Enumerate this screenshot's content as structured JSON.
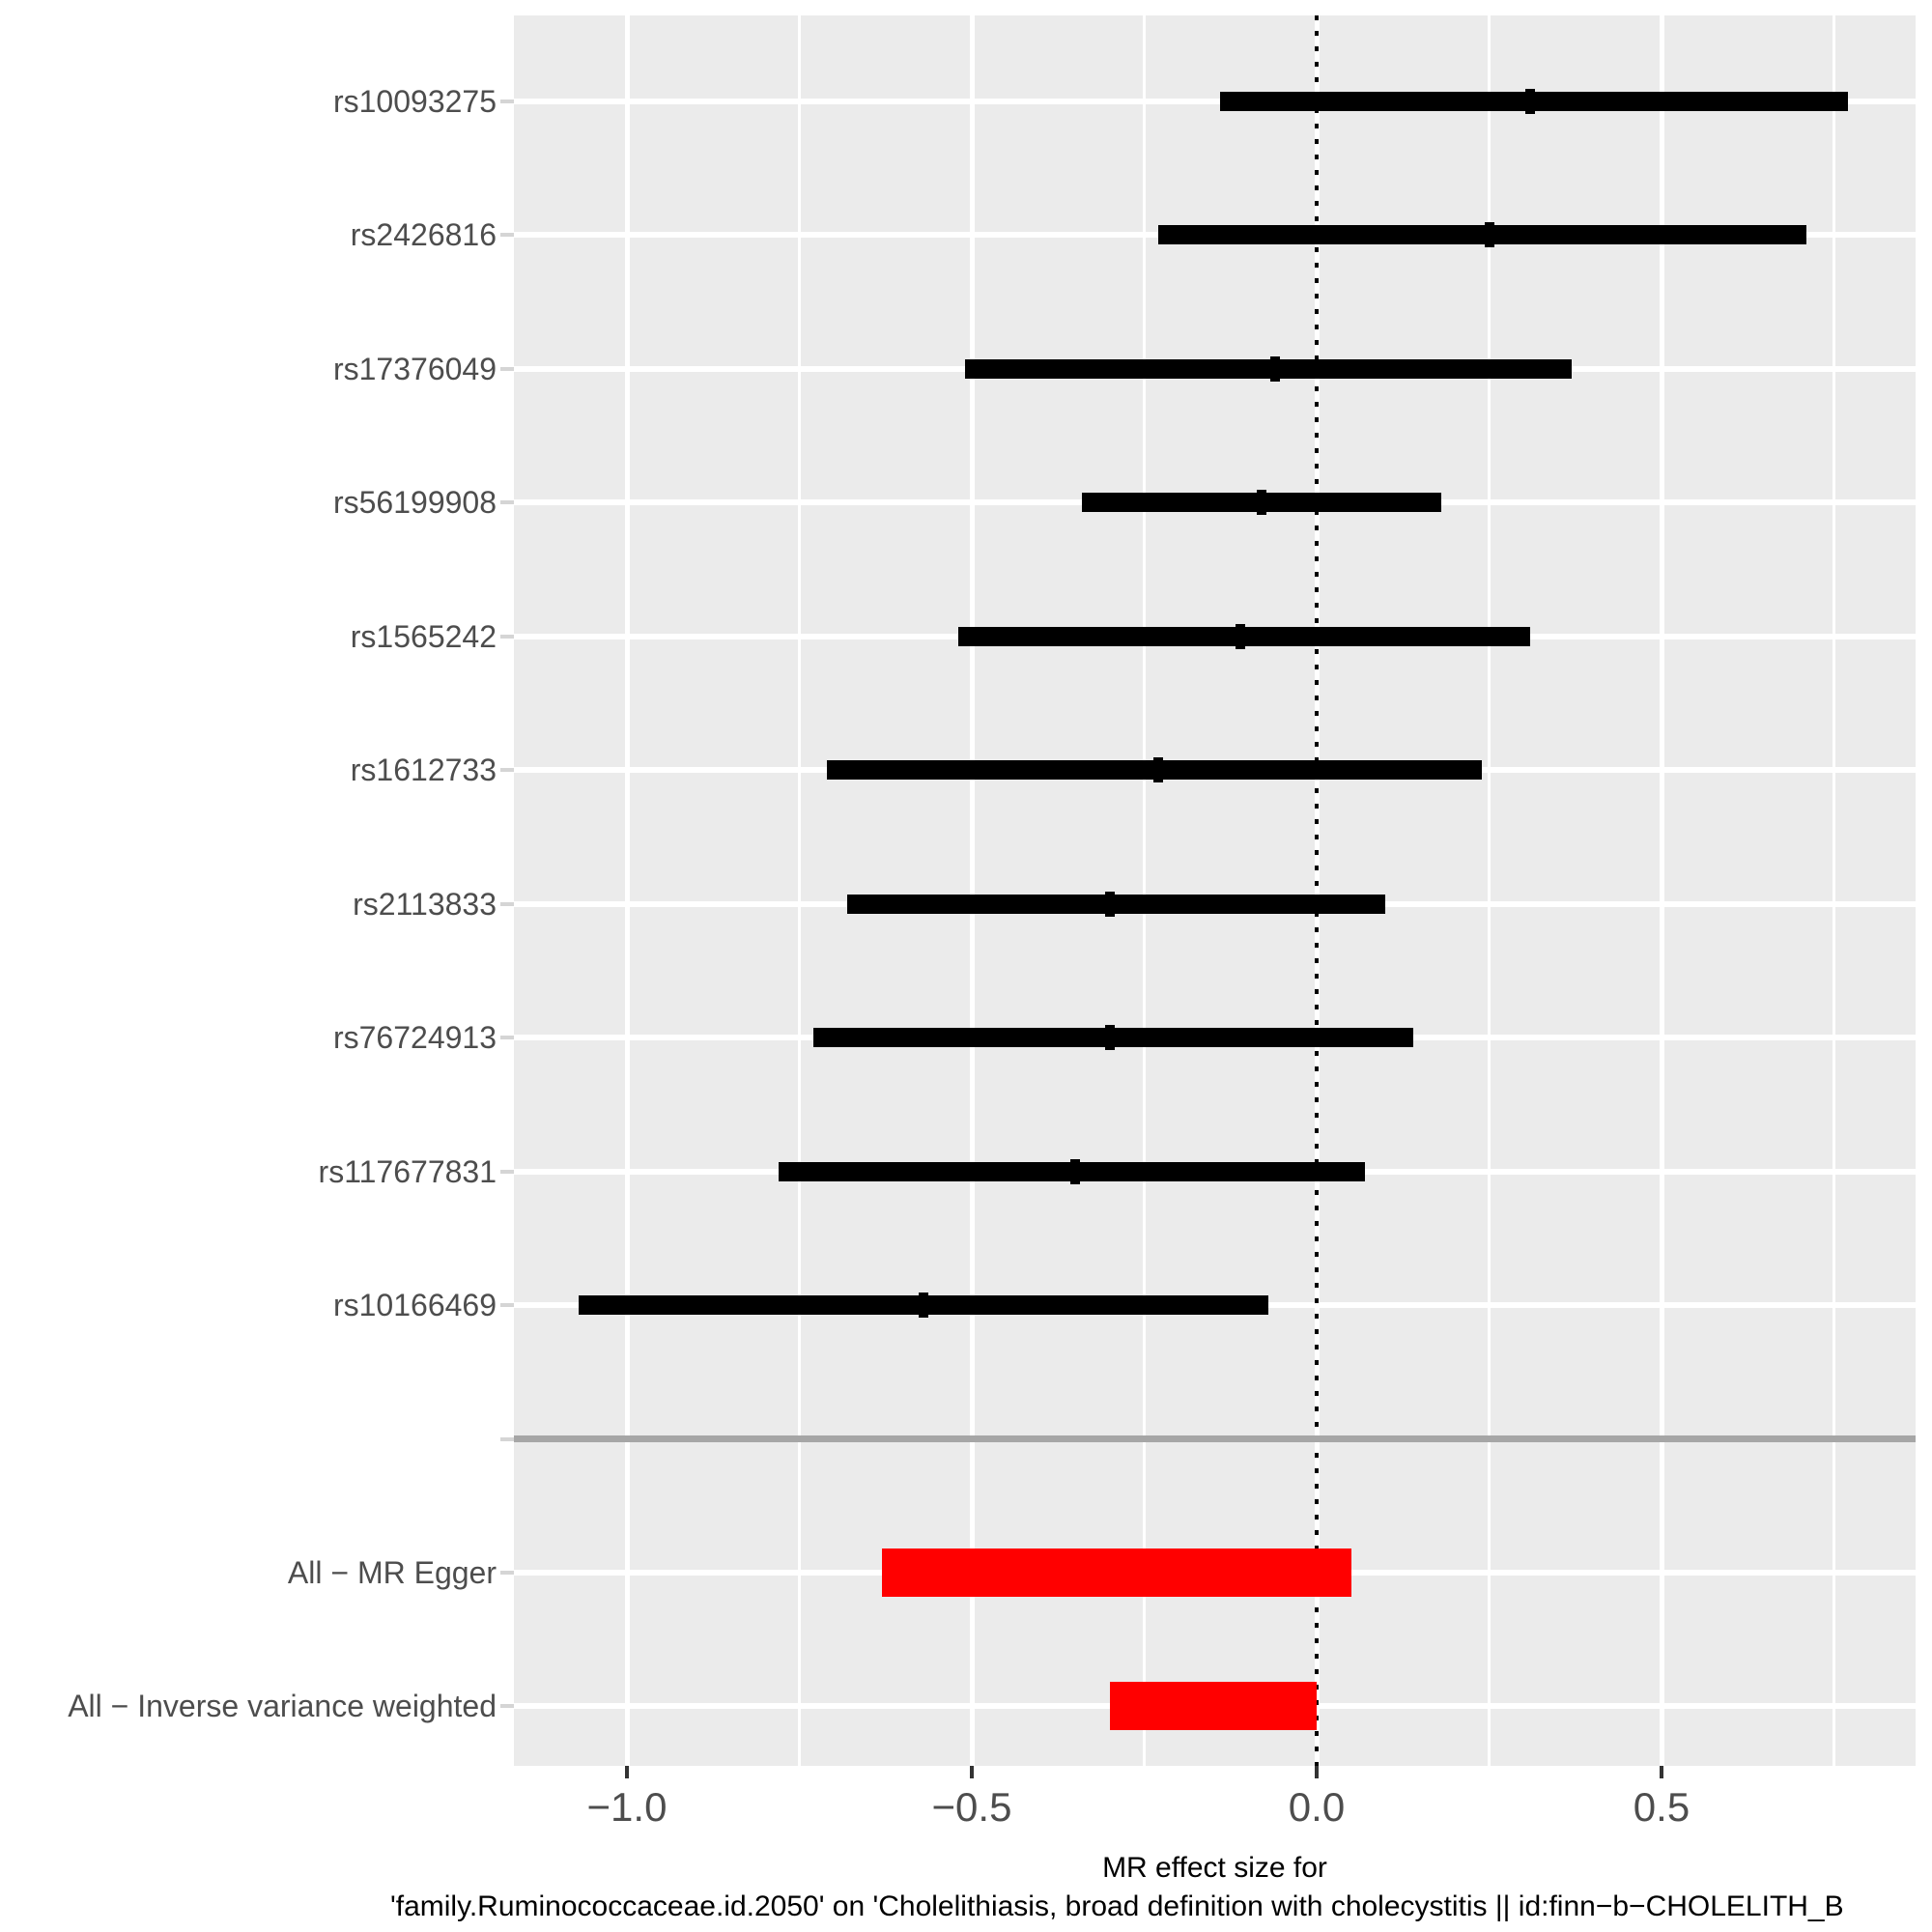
{
  "chart_data": {
    "type": "forest",
    "xlabel_line1": "MR effect size for",
    "xlabel_line2": "'family.Ruminococcaceae.id.2050' on 'Cholelithiasis, broad definition with cholecystitis || id:finn−b−CHOLELITH_B",
    "x_axis": {
      "range": [
        -1.168,
        0.864
      ],
      "major_ticks": [
        {
          "value": -1.0,
          "label": "−1.0"
        },
        {
          "value": -0.5,
          "label": "−0.5"
        },
        {
          "value": 0.0,
          "label": "0.0"
        },
        {
          "value": 0.5,
          "label": "0.5"
        }
      ],
      "minor_ticks": [
        -0.75,
        -0.25,
        0.25,
        0.75
      ],
      "grid": true
    },
    "zero_line": 0.0,
    "legend": "none",
    "rows": [
      {
        "slot": 0,
        "type": "snp",
        "label": "rs10093275",
        "lo": -0.14,
        "hi": 0.77,
        "point": 0.31
      },
      {
        "slot": 1,
        "type": "snp",
        "label": "rs2426816",
        "lo": -0.23,
        "hi": 0.71,
        "point": 0.25
      },
      {
        "slot": 2,
        "type": "snp",
        "label": "rs17376049",
        "lo": -0.51,
        "hi": 0.37,
        "point": -0.06
      },
      {
        "slot": 3,
        "type": "snp",
        "label": "rs56199908",
        "lo": -0.34,
        "hi": 0.18,
        "point": -0.08
      },
      {
        "slot": 4,
        "type": "snp",
        "label": "rs1565242",
        "lo": -0.52,
        "hi": 0.31,
        "point": -0.11
      },
      {
        "slot": 5,
        "type": "snp",
        "label": "rs1612733",
        "lo": -0.71,
        "hi": 0.24,
        "point": -0.23
      },
      {
        "slot": 6,
        "type": "snp",
        "label": "rs2113833",
        "lo": -0.68,
        "hi": 0.1,
        "point": -0.3
      },
      {
        "slot": 7,
        "type": "snp",
        "label": "rs76724913",
        "lo": -0.73,
        "hi": 0.14,
        "point": -0.3
      },
      {
        "slot": 8,
        "type": "snp",
        "label": "rs117677831",
        "lo": -0.78,
        "hi": 0.07,
        "point": -0.35
      },
      {
        "slot": 9,
        "type": "snp",
        "label": "rs10166469",
        "lo": -1.07,
        "hi": -0.07,
        "point": -0.57
      },
      {
        "slot": 10,
        "type": "separator",
        "label": ""
      },
      {
        "slot": 11,
        "type": "summary",
        "label": "All − MR Egger",
        "lo": -0.63,
        "hi": 0.05
      },
      {
        "slot": 12,
        "type": "summary",
        "label": "All − Inverse variance weighted",
        "lo": -0.3,
        "hi": 0.0
      }
    ],
    "colors": {
      "snp_bar": "#000000",
      "summary_bar": "#FF0000",
      "panel_bg": "#EBEBEB",
      "gridline": "#FFFFFF",
      "separator": "#A6A6A6",
      "axis_text": "#4D4D4D",
      "title_text": "#000000",
      "x_tick": "#333333"
    }
  }
}
